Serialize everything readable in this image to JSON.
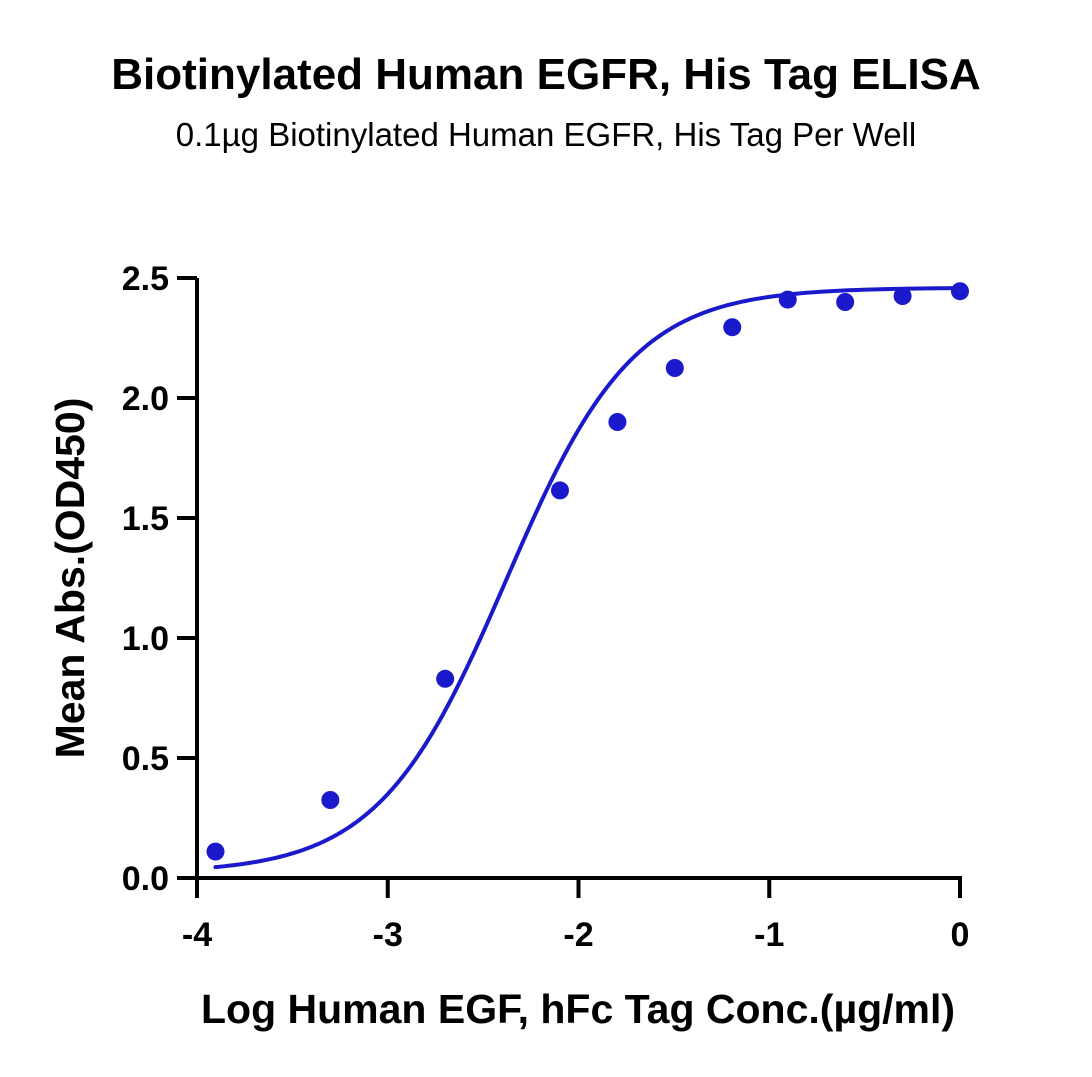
{
  "chart_data": {
    "type": "scatter",
    "title": "Biotinylated Human EGFR, His Tag ELISA",
    "subtitle": "0.1µg Biotinylated Human EGFR, His Tag Per Well",
    "xlabel": "Log Human EGF, hFc Tag Conc.(µg/ml)",
    "ylabel": "Mean Abs.(OD450)",
    "xlim": [
      -4,
      0
    ],
    "ylim": [
      0,
      2.5
    ],
    "x_ticks": [
      "-4",
      "-3",
      "-2",
      "-1",
      "0"
    ],
    "y_ticks": [
      "0.0",
      "0.5",
      "1.0",
      "1.5",
      "2.0",
      "2.5"
    ],
    "grid": false,
    "series": [
      {
        "x": [
          -3.903,
          -3.301,
          -2.699,
          -2.097,
          -1.796,
          -1.495,
          -1.194,
          -0.903,
          -0.602,
          -0.301,
          0
        ],
        "y": [
          0.11,
          0.325,
          0.83,
          1.615,
          1.9,
          2.125,
          2.295,
          2.41,
          2.4,
          2.425,
          2.445
        ],
        "fit": "four-parameter logistic",
        "fit_params": {
          "bottom": 0.02,
          "top": 2.46,
          "logEC50": -2.38,
          "hill": 1.3
        },
        "color": "#1a1acc"
      }
    ]
  }
}
